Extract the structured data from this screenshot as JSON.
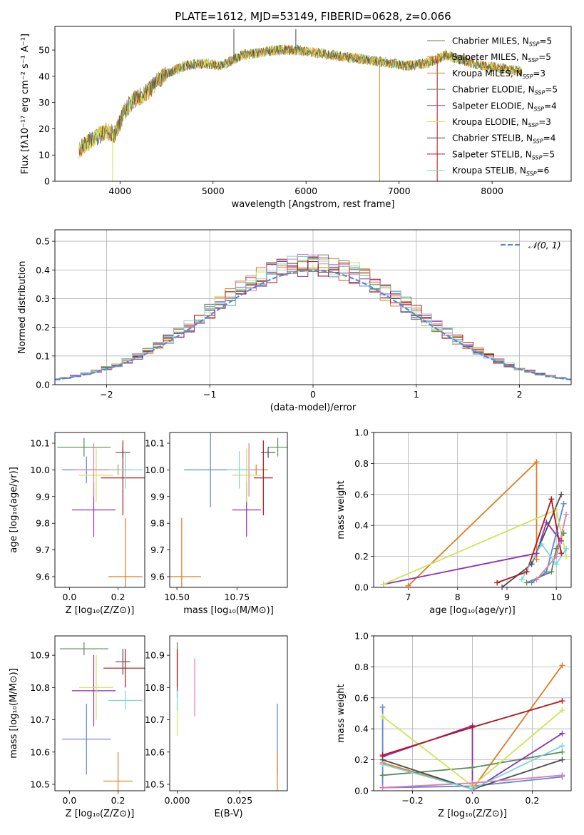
{
  "colors": [
    "#5b86d6",
    "#e07b22",
    "#c98a17",
    "#5a8a5a",
    "#8e2fb0",
    "#cfe35a",
    "#4a4a4a",
    "#b3121a",
    "#e07ab0",
    "#7ad6dc"
  ],
  "chart_data": [
    {
      "id": "spectrum",
      "type": "line",
      "title": "PLATE=1612, MJD=53149, FIBERID=0628, z=0.066",
      "xlabel": "wavelength [Angstrom, rest frame]",
      "ylabel": "Flux [fλ10⁻¹⁷ erg cm⁻² s⁻¹ A⁻¹]",
      "xlim": [
        3300,
        8850
      ],
      "ylim": [
        0,
        59
      ],
      "xticks": [
        4000,
        5000,
        6000,
        7000,
        8000
      ],
      "yticks": [
        0,
        10,
        20,
        30,
        40,
        50
      ],
      "legend": [
        "Chabrier MILES, N_SSP=5",
        "Salpeter MILES, N_SSP=5",
        "Kroupa MILES, N_SSP=3",
        "Chabrier ELODIE, N_SSP=5",
        "Salpeter ELODIE, N_SSP=4",
        "Kroupa ELODIE, N_SSP=3",
        "Chabrier STELIB, N_SSP=4",
        "Salpeter STELIB, N_SSP=5",
        "Kroupa STELIB, N_SSP=6"
      ],
      "legend_colors": [
        "#5a8a5a",
        "#e07b22",
        "#c98a17",
        "#5a8a5a",
        "#8e2fb0",
        "#cfe35a",
        "#4a4a4a",
        "#b3121a",
        "#7ad6dc"
      ],
      "legend_position": "upper-right",
      "continuum": [
        [
          3560,
          12
        ],
        [
          3700,
          16
        ],
        [
          3850,
          19
        ],
        [
          3950,
          18
        ],
        [
          4050,
          27
        ],
        [
          4150,
          31
        ],
        [
          4300,
          34
        ],
        [
          4400,
          38
        ],
        [
          4500,
          41
        ],
        [
          4700,
          44
        ],
        [
          4900,
          45
        ],
        [
          5100,
          44
        ],
        [
          5300,
          48
        ],
        [
          5500,
          49
        ],
        [
          5700,
          50
        ],
        [
          5900,
          50
        ],
        [
          6100,
          49
        ],
        [
          6300,
          48
        ],
        [
          6500,
          47
        ],
        [
          6700,
          46
        ],
        [
          6900,
          45
        ],
        [
          7100,
          44
        ],
        [
          7300,
          45
        ],
        [
          7500,
          48
        ],
        [
          7700,
          46
        ],
        [
          7900,
          44
        ],
        [
          8100,
          43
        ],
        [
          8300,
          42
        ]
      ],
      "spikes": [
        [
          5224,
          58
        ],
        [
          5890,
          58
        ],
        [
          6790,
          0
        ],
        [
          7410,
          0
        ],
        [
          3920,
          0
        ]
      ]
    },
    {
      "id": "residuals",
      "type": "histogram",
      "xlabel": "(data-model)/error",
      "ylabel": "Normed distribution",
      "xlim": [
        -2.5,
        2.5
      ],
      "ylim": [
        0,
        0.54
      ],
      "xticks": [
        -2,
        -1,
        0,
        1,
        2
      ],
      "yticks": [
        0.0,
        0.1,
        0.2,
        0.3,
        0.4,
        0.5
      ],
      "grid": true,
      "legend": "𝒩(0, 1)",
      "legend_position": "upper-right",
      "bin_width": 0.1
    },
    {
      "id": "age-vs-Z",
      "type": "errorbar",
      "xlabel": "Z [log₁₀(Z/Z⊙)]",
      "ylabel": "age  [log₁₀(age/yr)]",
      "xlim": [
        -0.06,
        0.31
      ],
      "ylim": [
        9.56,
        10.14
      ],
      "xticks": [
        0.0,
        0.2
      ],
      "yticks": [
        9.6,
        9.7,
        9.8,
        9.9,
        10.0,
        10.1
      ],
      "points": [
        {
          "x": 0.07,
          "y": 10.0,
          "xerr": 0.1,
          "yerr": 0.05,
          "color": "#5b86d6"
        },
        {
          "x": 0.23,
          "y": 9.6,
          "xerr": 0.07,
          "yerr": 0.22,
          "color": "#e07b22"
        },
        {
          "x": 0.2,
          "y": 10.0,
          "xerr": 0.05,
          "yerr": 0.02,
          "color": "#c98a17"
        },
        {
          "x": 0.06,
          "y": 10.085,
          "xerr": 0.11,
          "yerr": 0.035,
          "color": "#5a8a5a"
        },
        {
          "x": 0.1,
          "y": 9.85,
          "xerr": 0.09,
          "yerr": 0.1,
          "color": "#8e2fb0"
        },
        {
          "x": 0.11,
          "y": 9.98,
          "xerr": 0.07,
          "yerr": 0.1,
          "color": "#cfe35a"
        },
        {
          "x": 0.22,
          "y": 10.065,
          "xerr": 0.03,
          "yerr": 0.02,
          "color": "#4a4a4a"
        },
        {
          "x": 0.22,
          "y": 9.97,
          "xerr": 0.09,
          "yerr": 0.14,
          "color": "#b3121a"
        },
        {
          "x": 0.1,
          "y": 10.0,
          "xerr": 0.08,
          "yerr": 0.1,
          "color": "#e07ab0"
        },
        {
          "x": 0.23,
          "y": 10.0,
          "xerr": 0.07,
          "yerr": 0.07,
          "color": "#7ad6dc"
        }
      ]
    },
    {
      "id": "age-vs-mass",
      "type": "errorbar",
      "xlabel": "mass [log₁₀(M/M⊙)]",
      "ylabel": "",
      "xlim": [
        10.47,
        10.96
      ],
      "ylim": [
        9.56,
        10.14
      ],
      "xticks": [
        10.5,
        10.75
      ],
      "tick_labels": [
        "10.50",
        "10.75"
      ],
      "yticks": [
        9.6,
        9.7,
        9.8,
        9.9,
        10.0,
        10.1
      ],
      "points": [
        {
          "x": 10.64,
          "y": 10.0,
          "xerr": 0.11,
          "yerr": 0.14,
          "color": "#5b86d6"
        },
        {
          "x": 10.52,
          "y": 9.6,
          "xerr": 0.08,
          "yerr": 0.22,
          "color": "#e07b22"
        },
        {
          "x": 10.83,
          "y": 10.0,
          "xerr": 0.05,
          "yerr": 0.02,
          "color": "#c98a17"
        },
        {
          "x": 10.92,
          "y": 10.085,
          "xerr": 0.04,
          "yerr": 0.035,
          "color": "#5a8a5a"
        },
        {
          "x": 10.79,
          "y": 9.85,
          "xerr": 0.06,
          "yerr": 0.1,
          "color": "#8e2fb0"
        },
        {
          "x": 10.79,
          "y": 9.98,
          "xerr": 0.06,
          "yerr": 0.1,
          "color": "#cfe35a"
        },
        {
          "x": 10.88,
          "y": 10.065,
          "xerr": 0.03,
          "yerr": 0.02,
          "color": "#4a4a4a"
        },
        {
          "x": 10.86,
          "y": 9.97,
          "xerr": 0.04,
          "yerr": 0.14,
          "color": "#b3121a"
        },
        {
          "x": 10.8,
          "y": 10.0,
          "xerr": 0.05,
          "yerr": 0.1,
          "color": "#e07ab0"
        },
        {
          "x": 10.76,
          "y": 10.0,
          "xerr": 0.05,
          "yerr": 0.07,
          "color": "#7ad6dc"
        }
      ]
    },
    {
      "id": "weight-vs-age",
      "type": "line",
      "xlabel": "age  [log₁₀(age/yr)]",
      "ylabel": "mass weight",
      "xlim": [
        6.3,
        10.3
      ],
      "ylim": [
        0,
        1.0
      ],
      "xticks": [
        7,
        8,
        9,
        10
      ],
      "yticks": [
        0.0,
        0.2,
        0.4,
        0.6,
        0.8,
        1.0
      ],
      "grid": true,
      "series": [
        {
          "color": "#5b86d6",
          "points": [
            [
              9.5,
              0.03
            ],
            [
              9.8,
              0.1
            ],
            [
              10.0,
              0.35
            ],
            [
              10.15,
              0.54
            ]
          ]
        },
        {
          "color": "#e07b22",
          "points": [
            [
              7.0,
              0.01
            ],
            [
              9.6,
              0.81
            ],
            [
              9.6,
              0.18
            ]
          ]
        },
        {
          "color": "#5a8a5a",
          "points": [
            [
              9.4,
              0.03
            ],
            [
              9.9,
              0.1
            ],
            [
              10.0,
              0.25
            ],
            [
              10.15,
              0.35
            ]
          ]
        },
        {
          "color": "#8e2fb0",
          "points": [
            [
              6.5,
              0.02
            ],
            [
              9.6,
              0.22
            ],
            [
              9.8,
              0.42
            ],
            [
              10.1,
              0.3
            ]
          ]
        },
        {
          "color": "#cfe35a",
          "points": [
            [
              6.5,
              0.02
            ],
            [
              10.0,
              0.5
            ],
            [
              10.2,
              0.2
            ]
          ]
        },
        {
          "color": "#4a4a4a",
          "points": [
            [
              8.9,
              0.0
            ],
            [
              9.5,
              0.15
            ],
            [
              10.1,
              0.6
            ]
          ]
        },
        {
          "color": "#b3121a",
          "points": [
            [
              8.8,
              0.03
            ],
            [
              9.4,
              0.1
            ],
            [
              9.9,
              0.57
            ],
            [
              10.1,
              0.22
            ]
          ]
        },
        {
          "color": "#e07ab0",
          "points": [
            [
              9.6,
              0.05
            ],
            [
              10.0,
              0.2
            ],
            [
              10.2,
              0.47
            ]
          ]
        },
        {
          "color": "#7ad6dc",
          "points": [
            [
              9.3,
              0.05
            ],
            [
              9.7,
              0.28
            ],
            [
              10.0,
              0.15
            ],
            [
              10.2,
              0.25
            ]
          ]
        }
      ]
    },
    {
      "id": "mass-vs-Z",
      "type": "errorbar",
      "xlabel": "Z [log₁₀(Z/Z⊙)]",
      "ylabel": "mass [log₁₀(M/M⊙)]",
      "xlim": [
        -0.06,
        0.31
      ],
      "ylim": [
        10.48,
        10.96
      ],
      "xticks": [
        0.0,
        0.2
      ],
      "yticks": [
        10.5,
        10.6,
        10.7,
        10.8,
        10.9
      ],
      "points": [
        {
          "x": 0.07,
          "y": 10.64,
          "xerr": 0.1,
          "yerr": 0.11,
          "color": "#5b86d6"
        },
        {
          "x": 0.2,
          "y": 10.51,
          "xerr": 0.06,
          "yerr": 0.09,
          "color": "#e07b22"
        },
        {
          "x": 0.06,
          "y": 10.92,
          "xerr": 0.1,
          "yerr": 0.02,
          "color": "#5a8a5a"
        },
        {
          "x": 0.1,
          "y": 10.79,
          "xerr": 0.09,
          "yerr": 0.11,
          "color": "#8e2fb0"
        },
        {
          "x": 0.11,
          "y": 10.8,
          "xerr": 0.07,
          "yerr": 0.1,
          "color": "#cfe35a"
        },
        {
          "x": 0.22,
          "y": 10.88,
          "xerr": 0.03,
          "yerr": 0.04,
          "color": "#4a4a4a"
        },
        {
          "x": 0.23,
          "y": 10.86,
          "xerr": 0.09,
          "yerr": 0.06,
          "color": "#b3121a"
        },
        {
          "x": 0.23,
          "y": 10.76,
          "xerr": 0.07,
          "yerr": 0.03,
          "color": "#7ad6dc"
        }
      ]
    },
    {
      "id": "mass-vs-ebv",
      "type": "errorbar",
      "xlabel": "E(B-V)",
      "ylabel": "",
      "xlim": [
        -0.003,
        0.044
      ],
      "ylim": [
        10.48,
        10.96
      ],
      "xticks": [
        0.0,
        0.025
      ],
      "tick_labels": [
        "0.000",
        "0.025"
      ],
      "yticks": [
        10.5,
        10.6,
        10.7,
        10.8,
        10.9
      ],
      "points": [
        {
          "x": 0.04,
          "y": 10.64,
          "xerr": 0.0,
          "yerr": 0.11,
          "color": "#5b86d6"
        },
        {
          "x": 0.04,
          "y": 10.51,
          "xerr": 0.0,
          "yerr": 0.09,
          "color": "#e07b22"
        },
        {
          "x": 0.0,
          "y": 10.92,
          "xerr": 0.0,
          "yerr": 0.02,
          "color": "#5a8a5a"
        },
        {
          "x": 0.0,
          "y": 10.84,
          "xerr": 0.0,
          "yerr": 0.07,
          "color": "#4a4a4a"
        },
        {
          "x": 0.0,
          "y": 10.86,
          "xerr": 0.0,
          "yerr": 0.06,
          "color": "#b3121a"
        },
        {
          "x": 0.0,
          "y": 10.7,
          "xerr": 0.0,
          "yerr": 0.05,
          "color": "#cfe35a"
        },
        {
          "x": 0.007,
          "y": 10.8,
          "xerr": 0.0,
          "yerr": 0.09,
          "color": "#e07ab0"
        },
        {
          "x": 0.0,
          "y": 10.76,
          "xerr": 0.0,
          "yerr": 0.03,
          "color": "#7ad6dc"
        }
      ]
    },
    {
      "id": "weight-vs-Z",
      "type": "line",
      "xlabel": "Z [log₁₀(Z/Z⊙)]",
      "ylabel": "mass weight",
      "xlim": [
        -0.33,
        0.33
      ],
      "ylim": [
        0,
        1.0
      ],
      "xticks": [
        -0.2,
        0.0,
        0.2
      ],
      "yticks": [
        0.0,
        0.2,
        0.4,
        0.6,
        0.8,
        1.0
      ],
      "grid": true,
      "series": [
        {
          "color": "#5b86d6",
          "points": [
            [
              -0.3,
              0.54
            ],
            [
              -0.3,
              0.02
            ],
            [
              0.0,
              0.03
            ],
            [
              0.3,
              0.09
            ]
          ]
        },
        {
          "color": "#e07b22",
          "points": [
            [
              -0.3,
              0.18
            ],
            [
              0.0,
              0.01
            ],
            [
              0.3,
              0.81
            ]
          ]
        },
        {
          "color": "#5a8a5a",
          "points": [
            [
              -0.3,
              0.1
            ],
            [
              0.0,
              0.15
            ],
            [
              0.3,
              0.25
            ]
          ]
        },
        {
          "color": "#8e2fb0",
          "points": [
            [
              -0.3,
              0.22
            ],
            [
              0.0,
              0.42
            ],
            [
              0.0,
              0.0
            ],
            [
              0.3,
              0.37
            ]
          ]
        },
        {
          "color": "#cfe35a",
          "points": [
            [
              -0.3,
              0.48
            ],
            [
              0.0,
              0.03
            ],
            [
              0.3,
              0.52
            ]
          ]
        },
        {
          "color": "#4a4a4a",
          "points": [
            [
              -0.3,
              0.2
            ],
            [
              0.0,
              0.01
            ],
            [
              0.3,
              0.2
            ]
          ]
        },
        {
          "color": "#b3121a",
          "points": [
            [
              -0.3,
              0.23
            ],
            [
              0.0,
              0.41
            ],
            [
              0.3,
              0.58
            ]
          ]
        },
        {
          "color": "#e07ab0",
          "points": [
            [
              -0.3,
              0.02
            ],
            [
              0.0,
              0.05
            ],
            [
              0.3,
              0.1
            ]
          ]
        },
        {
          "color": "#7ad6dc",
          "points": [
            [
              -0.3,
              0.17
            ],
            [
              0.0,
              0.01
            ],
            [
              0.3,
              0.29
            ]
          ]
        }
      ]
    }
  ]
}
